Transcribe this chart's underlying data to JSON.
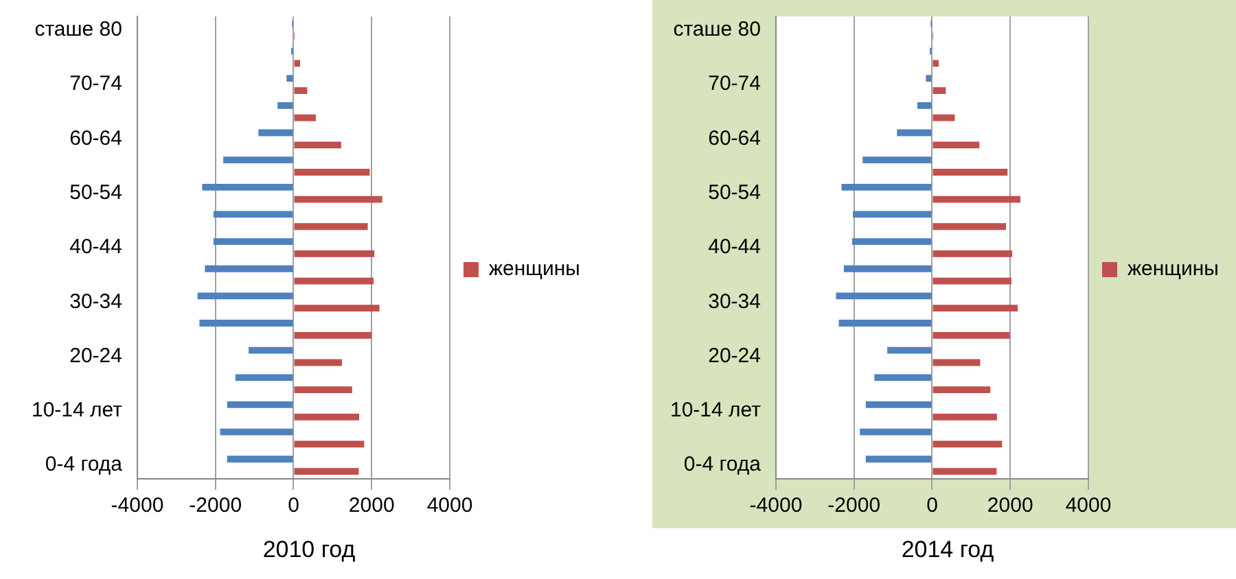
{
  "chart_data": [
    {
      "type": "bar",
      "orientation": "horizontal",
      "xlabel": "2010 год",
      "categories": [
        "сташе 80",
        null,
        "70-74",
        null,
        "60-64",
        null,
        "50-54",
        null,
        "40-44",
        null,
        "30-34",
        null,
        "20-24",
        null,
        "10-14 лет",
        null,
        "0-4 года"
      ],
      "series": [
        {
          "color": "#4f81bd",
          "values": [
            -40,
            -60,
            -180,
            -410,
            -900,
            -1800,
            -2340,
            -2050,
            -2050,
            -2270,
            -2460,
            -2410,
            -1150,
            -1490,
            -1700,
            -1880,
            -1700
          ]
        },
        {
          "name": "женщины",
          "color": "#c0504d",
          "values": [
            30,
            170,
            350,
            570,
            1220,
            1950,
            2270,
            1900,
            2070,
            2050,
            2200,
            2000,
            1240,
            1500,
            1680,
            1810,
            1670
          ]
        }
      ],
      "xlim": [
        -4000,
        4000
      ],
      "xticks": [
        -4000,
        -2000,
        0,
        2000,
        4000
      ],
      "grid": "x",
      "legend": "right"
    },
    {
      "type": "bar",
      "orientation": "horizontal",
      "xlabel": "2014 год",
      "categories": [
        "сташе 80",
        null,
        "70-74",
        null,
        "60-64",
        null,
        "50-54",
        null,
        "40-44",
        null,
        "30-34",
        null,
        "20-24",
        null,
        "10-14 лет",
        null,
        "0-4 года"
      ],
      "series": [
        {
          "color": "#4f81bd",
          "values": [
            -40,
            -60,
            -160,
            -380,
            -900,
            -1780,
            -2320,
            -2030,
            -2050,
            -2260,
            -2460,
            -2390,
            -1150,
            -1480,
            -1700,
            -1850,
            -1700
          ]
        },
        {
          "name": "женщины",
          "color": "#c0504d",
          "values": [
            30,
            170,
            350,
            580,
            1210,
            1930,
            2260,
            1890,
            2050,
            2030,
            2190,
            1990,
            1230,
            1490,
            1660,
            1790,
            1650
          ]
        }
      ],
      "xlim": [
        -4000,
        4000
      ],
      "xticks": [
        -4000,
        -2000,
        0,
        2000,
        4000
      ],
      "grid": "x",
      "legend": "right"
    }
  ]
}
